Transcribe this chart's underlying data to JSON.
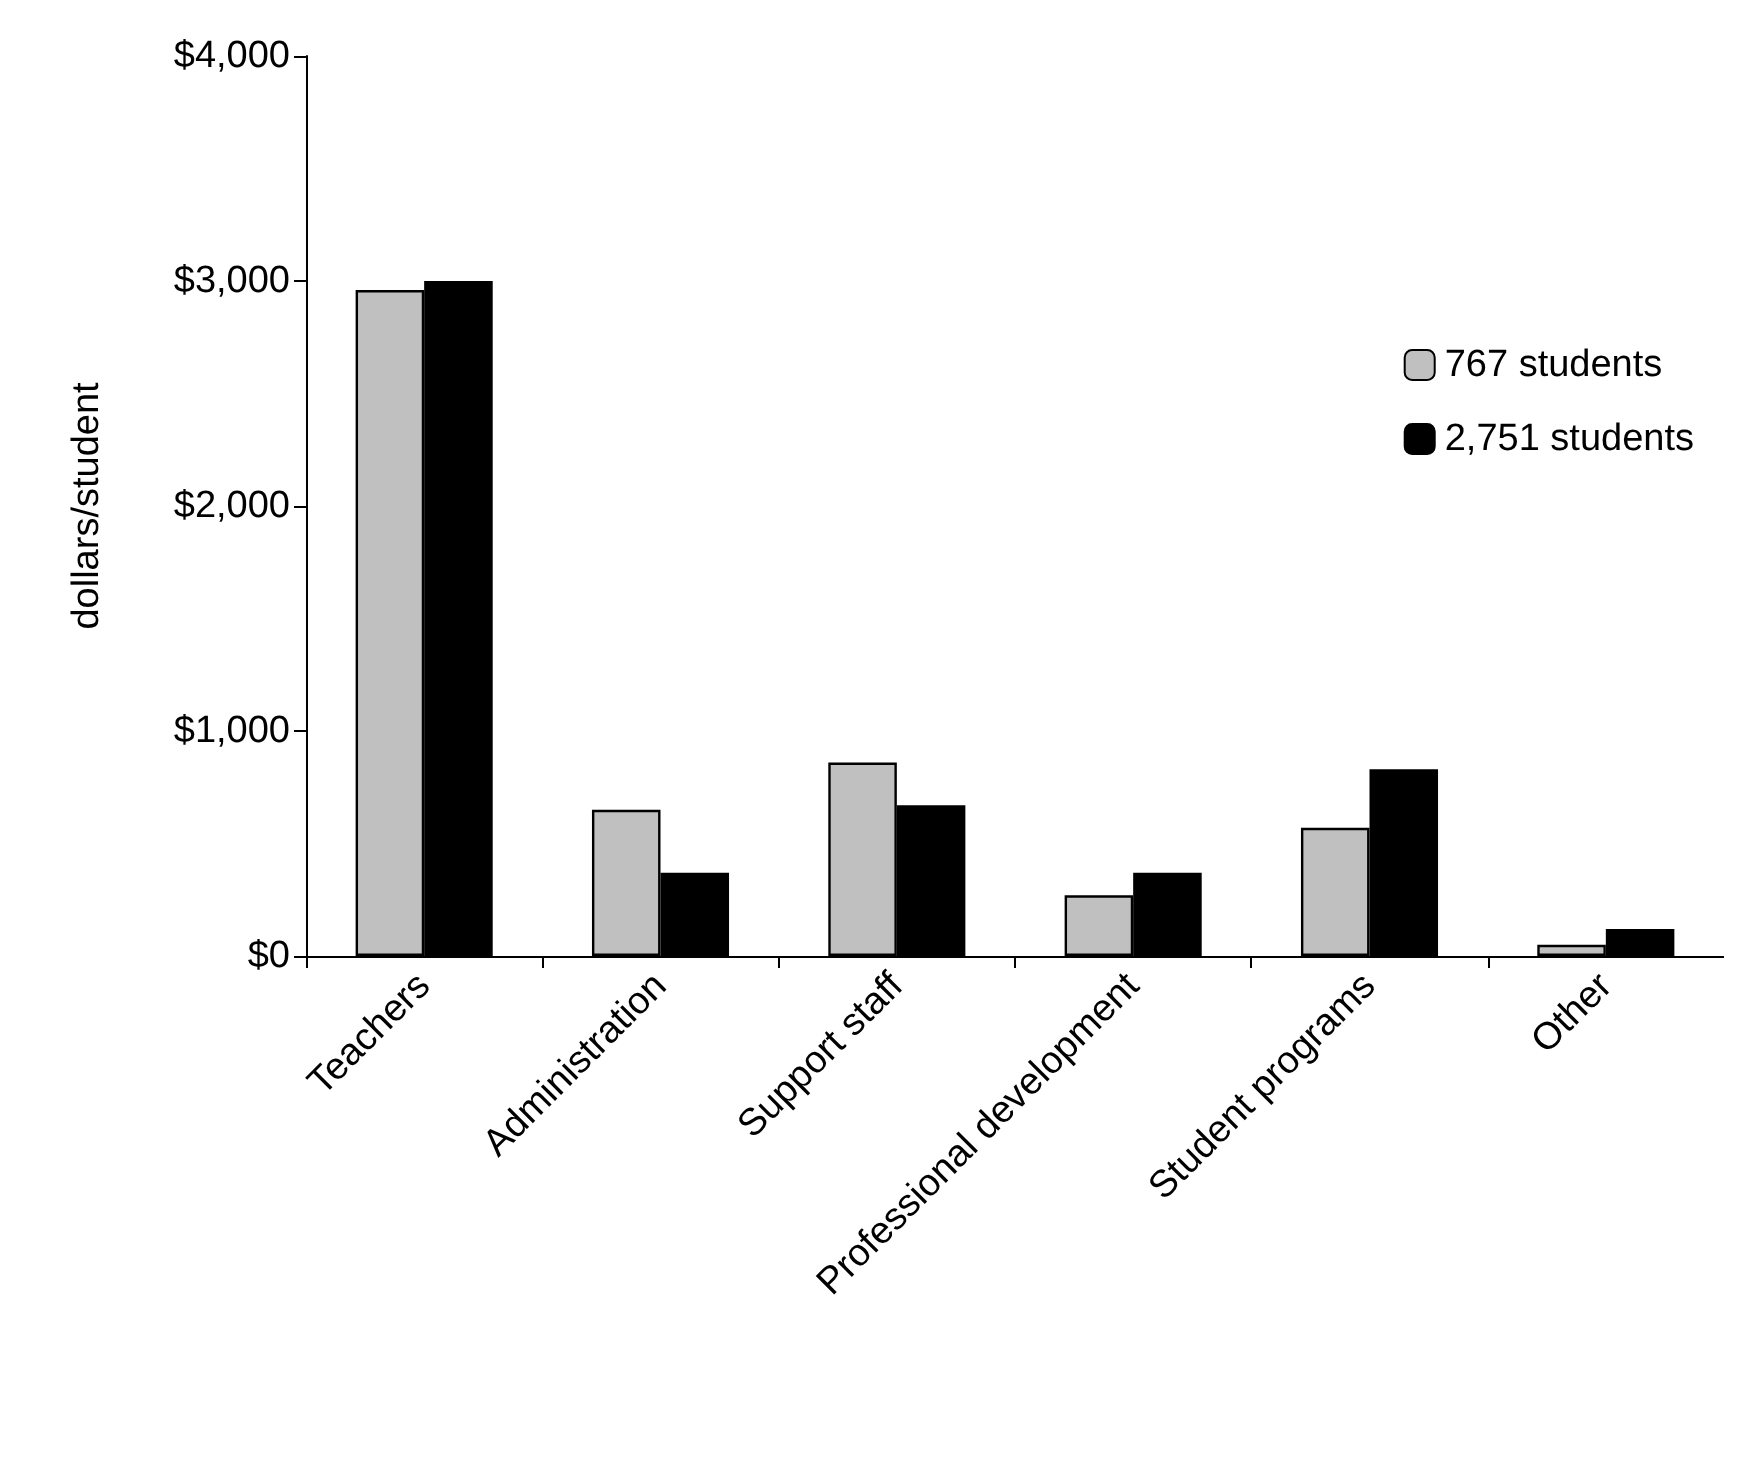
{
  "chart_data": {
    "type": "bar",
    "ylabel": "dollars/student",
    "categories": [
      "Teachers",
      "Administration",
      "Support staff",
      "Professional development",
      "Student programs",
      "Other"
    ],
    "series": [
      {
        "name": "767 students",
        "color": "#c0c0c0",
        "values": [
          2960,
          650,
          860,
          270,
          570,
          50
        ]
      },
      {
        "name": "2,751 students",
        "color": "#000000",
        "values": [
          3000,
          370,
          670,
          370,
          830,
          120
        ]
      }
    ],
    "ylim": [
      0,
      4000
    ],
    "yticks": [
      {
        "value": 0,
        "label": "$0"
      },
      {
        "value": 1000,
        "label": "$1,000"
      },
      {
        "value": 2000,
        "label": "$2,000"
      },
      {
        "value": 3000,
        "label": "$3,000"
      },
      {
        "value": 4000,
        "label": "$4,000"
      }
    ],
    "grid": false,
    "legend": "top right"
  }
}
